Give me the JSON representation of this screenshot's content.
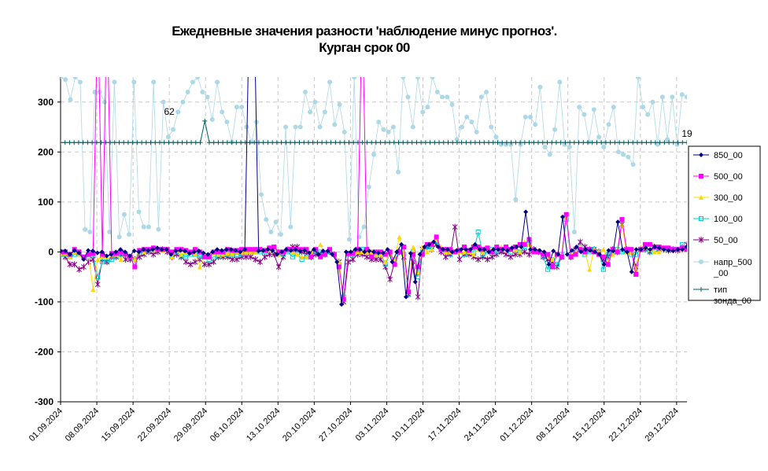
{
  "chart_data": {
    "type": "line",
    "title": "Ежедневные значения разности 'наблюдение минус прогноз'.",
    "subtitle": "Курган    срок 00",
    "ylim": [
      -300,
      350
    ],
    "yticks": [
      "-300",
      "-200",
      "-100",
      "0",
      "100",
      "200",
      "300"
    ],
    "xticks": [
      "01.09.2024",
      "08.09.2024",
      "15.09.2024",
      "22.09.2024",
      "29.09.2024",
      "06.10.2024",
      "13.10.2024",
      "20.10.2024",
      "27.10.2024",
      "03.11.2024",
      "10.11.2024",
      "17.11.2024",
      "24.11.2024",
      "01.12.2024",
      "08.12.2024",
      "15.12.2024",
      "22.12.2024",
      "29.12.2024"
    ],
    "x_start": "01.09.2024",
    "x_end": "31.12.2024",
    "grid": true,
    "legend_position": "right",
    "annotations": [
      {
        "text": "62",
        "x": "22.09.2024",
        "y": 262
      },
      {
        "text": "19",
        "x": "31.12.2024",
        "y": 218
      }
    ],
    "series": [
      {
        "name": "850_00",
        "color": "#000080",
        "marker": "diamond",
        "values": [
          2,
          2,
          -5,
          3,
          -2,
          -15,
          3,
          2,
          -2,
          0,
          -8,
          -5,
          0,
          5,
          0,
          -8,
          2,
          0,
          5,
          3,
          5,
          8,
          5,
          5,
          -5,
          2,
          3,
          2,
          -3,
          0,
          2,
          -2,
          -5,
          0,
          5,
          3,
          5,
          5,
          3,
          0,
          5,
          500,
          500,
          2,
          3,
          5,
          3,
          -5,
          0,
          5,
          3,
          5,
          2,
          3,
          -2,
          5,
          -5,
          2,
          2,
          -5,
          -20,
          -105,
          0,
          0,
          5,
          5,
          0,
          2,
          0,
          -2,
          -2,
          5,
          -20,
          0,
          15,
          -90,
          -3,
          -60,
          -5,
          10,
          15,
          20,
          10,
          5,
          5,
          0,
          3,
          5,
          5,
          5,
          15,
          5,
          5,
          0,
          5,
          5,
          5,
          3,
          8,
          10,
          10,
          80,
          5,
          5,
          3,
          0,
          -25,
          2,
          -5,
          70,
          -5,
          3,
          10,
          0,
          5,
          3,
          0,
          -5,
          -25,
          3,
          2,
          60,
          5,
          0,
          -40,
          5,
          5,
          8,
          5,
          10,
          8,
          5,
          3,
          2,
          5,
          5,
          10
        ]
      },
      {
        "name": "500_00",
        "color": "#ff00ff",
        "marker": "square",
        "values": [
          0,
          0,
          -5,
          5,
          0,
          -10,
          -5,
          -3,
          500,
          -5,
          500,
          -3,
          -3,
          0,
          -5,
          -10,
          -30,
          3,
          5,
          5,
          8,
          5,
          5,
          5,
          0,
          5,
          5,
          3,
          0,
          5,
          0,
          -10,
          -10,
          0,
          0,
          0,
          5,
          3,
          3,
          5,
          5,
          5,
          5,
          5,
          3,
          8,
          10,
          0,
          0,
          5,
          5,
          5,
          5,
          5,
          -10,
          5,
          -10,
          -5,
          5,
          -5,
          -30,
          -95,
          -3,
          -3,
          5,
          500,
          5,
          -10,
          0,
          0,
          -5,
          0,
          -25,
          0,
          10,
          -80,
          -5,
          -30,
          -5,
          15,
          15,
          30,
          5,
          5,
          5,
          0,
          3,
          10,
          3,
          10,
          10,
          5,
          8,
          0,
          10,
          5,
          10,
          5,
          10,
          15,
          15,
          25,
          0,
          0,
          -5,
          -5,
          -30,
          -5,
          -10,
          75,
          -10,
          -5,
          5,
          0,
          5,
          0,
          -5,
          -10,
          -25,
          5,
          0,
          65,
          5,
          5,
          -45,
          5,
          15,
          15,
          10,
          10,
          8,
          8,
          5,
          5,
          8,
          5
        ]
      },
      {
        "name": "300_00",
        "color": "#ffd700",
        "marker": "triangle",
        "values": [
          -3,
          -3,
          -10,
          0,
          -5,
          -10,
          -5,
          -75,
          -15,
          -10,
          -10,
          -5,
          -5,
          -15,
          -5,
          -10,
          -15,
          5,
          0,
          5,
          5,
          5,
          3,
          5,
          -10,
          3,
          -5,
          0,
          0,
          -3,
          -30,
          -10,
          -5,
          -3,
          -5,
          -5,
          -3,
          -3,
          0,
          0,
          0,
          0,
          0,
          5,
          5,
          5,
          5,
          -5,
          0,
          5,
          0,
          -5,
          -10,
          -10,
          0,
          5,
          15,
          -5,
          5,
          -5,
          -20,
          -95,
          -3,
          0,
          0,
          0,
          0,
          0,
          -5,
          -5,
          -20,
          -3,
          -15,
          30,
          -5,
          -80,
          10,
          -40,
          10,
          0,
          5,
          25,
          10,
          0,
          0,
          0,
          0,
          0,
          0,
          -5,
          5,
          0,
          5,
          5,
          10,
          10,
          5,
          5,
          5,
          0,
          20,
          15,
          0,
          0,
          -5,
          -10,
          -15,
          -5,
          -5,
          70,
          -5,
          0,
          10,
          0,
          -35,
          5,
          0,
          5,
          -20,
          -5,
          5,
          55,
          0,
          0,
          -35,
          10,
          10,
          5,
          0,
          0,
          5,
          5,
          5,
          5,
          5,
          5
        ]
      },
      {
        "name": "100_00",
        "color": "#00ced1",
        "marker": "square-open",
        "values": [
          -5,
          -5,
          -10,
          -5,
          -5,
          -10,
          -10,
          -5,
          -50,
          -20,
          -20,
          -15,
          -10,
          -5,
          -5,
          -10,
          -20,
          0,
          0,
          3,
          5,
          5,
          5,
          5,
          -10,
          0,
          -10,
          -10,
          -5,
          -5,
          -10,
          -10,
          -15,
          -10,
          -10,
          -5,
          -5,
          -5,
          -5,
          -5,
          0,
          0,
          0,
          0,
          0,
          5,
          5,
          -5,
          -5,
          0,
          -10,
          -5,
          -15,
          -10,
          -5,
          0,
          0,
          -5,
          0,
          -5,
          -25,
          -90,
          -5,
          -5,
          5,
          5,
          5,
          0,
          -5,
          -5,
          -25,
          -3,
          -15,
          0,
          -5,
          -85,
          0,
          -50,
          0,
          10,
          10,
          20,
          5,
          0,
          -5,
          0,
          0,
          -5,
          0,
          0,
          40,
          -5,
          0,
          5,
          0,
          5,
          10,
          0,
          10,
          0,
          10,
          15,
          0,
          0,
          -10,
          -35,
          -15,
          -25,
          -5,
          65,
          -10,
          0,
          10,
          -5,
          0,
          5,
          0,
          -35,
          -5,
          0,
          5,
          0,
          0,
          -5,
          -5,
          5,
          5,
          0,
          5,
          5,
          5,
          5,
          5,
          5,
          15,
          5
        ]
      },
      {
        "name": "50_00",
        "color": "#800080",
        "marker": "star",
        "values": [
          -5,
          -10,
          -25,
          -25,
          -35,
          -30,
          -20,
          -15,
          -65,
          -15,
          -20,
          -10,
          -10,
          -5,
          -15,
          -15,
          -15,
          -10,
          -5,
          0,
          -5,
          0,
          5,
          0,
          -10,
          -5,
          -10,
          -20,
          -25,
          -20,
          -15,
          -25,
          -25,
          -20,
          -10,
          -10,
          -10,
          -15,
          -15,
          -10,
          -10,
          -10,
          -15,
          -20,
          -10,
          -5,
          -5,
          -30,
          -10,
          5,
          10,
          10,
          0,
          -5,
          -10,
          -5,
          -5,
          -5,
          0,
          -5,
          -20,
          -100,
          -20,
          -15,
          -5,
          -5,
          -10,
          -15,
          -15,
          -15,
          -30,
          -55,
          -20,
          0,
          -10,
          -85,
          -20,
          -90,
          5,
          10,
          5,
          15,
          0,
          -10,
          -5,
          50,
          -15,
          -5,
          -5,
          -10,
          -15,
          -10,
          -15,
          -10,
          -5,
          0,
          -5,
          -10,
          -5,
          -5,
          0,
          -5,
          5,
          0,
          -10,
          -15,
          -20,
          -30,
          -10,
          70,
          -10,
          5,
          20,
          10,
          5,
          5,
          0,
          -15,
          -10,
          5,
          0,
          55,
          5,
          0,
          -30,
          5,
          5,
          0,
          10,
          5,
          5,
          3,
          5,
          3,
          5,
          15
        ]
      },
      {
        "name": "напр_500_00",
        "color": "#add8e6",
        "marker": "circle",
        "values": [
          350,
          345,
          305,
          350,
          340,
          45,
          40,
          320,
          320,
          300,
          40,
          340,
          30,
          75,
          35,
          340,
          80,
          50,
          50,
          340,
          45,
          300,
          230,
          245,
          280,
          300,
          320,
          340,
          350,
          320,
          310,
          265,
          340,
          280,
          260,
          220,
          290,
          290,
          250,
          220,
          260,
          115,
          65,
          40,
          60,
          35,
          250,
          50,
          250,
          250,
          320,
          280,
          300,
          250,
          280,
          340,
          255,
          295,
          240,
          25,
          350,
          30,
          50,
          130,
          195,
          260,
          245,
          240,
          250,
          160,
          350,
          310,
          250,
          350,
          280,
          290,
          350,
          320,
          310,
          310,
          295,
          225,
          250,
          270,
          260,
          240,
          310,
          320,
          250,
          230,
          215,
          215,
          215,
          105,
          215,
          270,
          270,
          255,
          330,
          210,
          195,
          245,
          340,
          215,
          210,
          40,
          290,
          275,
          220,
          285,
          230,
          210,
          255,
          290,
          200,
          195,
          190,
          175,
          350,
          290,
          275,
          300,
          215,
          310,
          225,
          310,
          215,
          315,
          310
        ]
      },
      {
        "name": "тип зонда_00",
        "color": "#006060",
        "marker": "plus",
        "values": [
          219,
          219,
          219,
          219,
          219,
          219,
          219,
          219,
          219,
          219,
          219,
          219,
          219,
          219,
          219,
          219,
          219,
          219,
          219,
          219,
          219,
          219,
          219,
          219,
          219,
          219,
          219,
          219,
          219,
          219,
          219,
          219,
          262,
          219,
          219,
          219,
          219,
          219,
          219,
          219,
          219,
          219,
          219,
          219,
          219,
          219,
          219,
          219,
          219,
          219,
          219,
          219,
          219,
          219,
          219,
          219,
          219,
          219,
          219,
          219,
          219,
          219,
          219,
          219,
          219,
          219,
          219,
          219,
          219,
          219,
          219,
          219,
          219,
          219,
          219,
          219,
          219,
          219,
          219,
          219,
          219,
          219,
          219,
          219,
          219,
          219,
          219,
          219,
          219,
          219,
          219,
          219,
          219,
          219,
          219,
          219,
          219,
          219,
          219,
          219,
          219,
          219,
          219,
          219,
          219,
          219,
          219,
          219,
          219,
          219,
          219,
          219,
          219,
          219,
          219,
          219,
          219,
          219,
          219,
          219,
          219,
          219,
          219,
          219,
          219,
          219,
          219,
          219,
          219,
          219,
          219,
          219,
          219,
          219,
          219,
          219,
          219,
          219,
          219,
          219
        ]
      }
    ],
    "legend_labels": [
      "850_00",
      "500_00",
      "300_00",
      "100_00",
      "50_00",
      "напр_500\n_00",
      "тип\nзонда_00"
    ]
  }
}
